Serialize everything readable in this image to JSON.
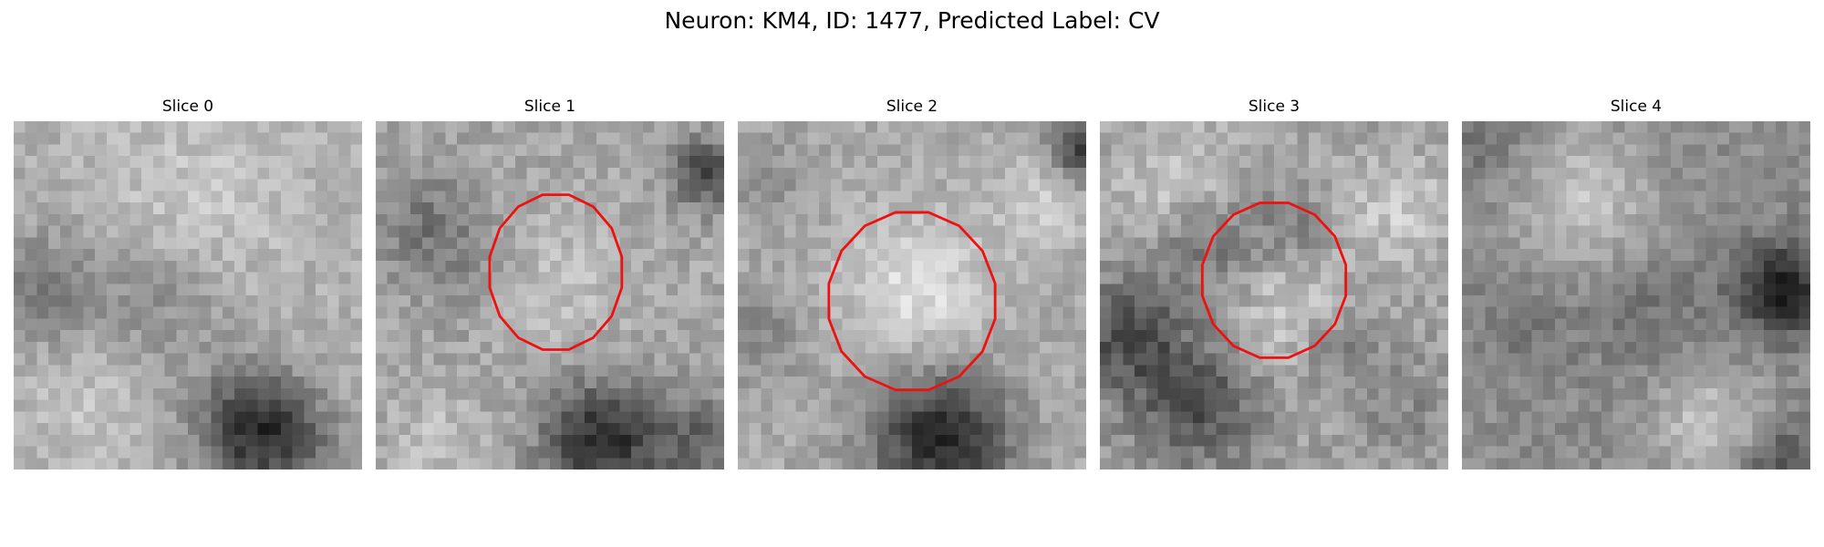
{
  "figure": {
    "title": "Neuron: KM4, ID: 1477, Predicted Label: CV"
  },
  "panels": [
    {
      "title": "Slice 0",
      "has_contour": false,
      "pattern": 0
    },
    {
      "title": "Slice 1",
      "has_contour": true,
      "pattern": 1
    },
    {
      "title": "Slice 2",
      "has_contour": true,
      "pattern": 2
    },
    {
      "title": "Slice 3",
      "has_contour": true,
      "pattern": 3
    },
    {
      "title": "Slice 4",
      "has_contour": false,
      "pattern": 4
    }
  ],
  "colors": {
    "contour": "#ee1111",
    "background": "#ffffff"
  }
}
